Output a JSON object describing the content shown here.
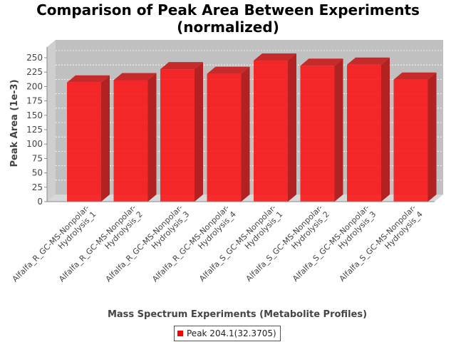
{
  "chart_data": {
    "type": "bar",
    "title_line1": "Comparison of Peak Area Between Experiments",
    "title_line2": "(normalized)",
    "xlabel": "Mass Spectrum Experiments (Metabolite Profiles)",
    "ylabel": "Peak Area (1e-3)",
    "ylim": [
      0,
      250
    ],
    "yticks": [
      0,
      25,
      50,
      75,
      100,
      125,
      150,
      175,
      200,
      225,
      250
    ],
    "categories": [
      "Alfalfa_R_GC-MS-Nonpolar-Hydrolysis_1",
      "Alfalfa_R_GC-MS-Nonpolar-Hydrolysis_2",
      "Alfalfa_R_GC-MS-Nonpolar-Hydrolysis_3",
      "Alfalfa_R_GC-MS-Nonpolar-Hydrolysis_4",
      "Alfalfa_S_GC-MS-Nonpolar-Hydrolysis_1",
      "Alfalfa_S_GC-MS-Nonpolar-Hydrolysis_2",
      "Alfalfa_S_GC-MS-Nonpolar-Hydrolysis_3",
      "Alfalfa_S_GC-MS-Nonpolar-Hydrolysis_4"
    ],
    "category_label_lines": [
      [
        "Alfalfa_R_GC-MS-Nonpolar-",
        "Hydrolysis_1"
      ],
      [
        "Alfalfa_R_GC-MS-Nonpolar-",
        "Hydrolysis_2"
      ],
      [
        "Alfalfa_R_GC-MS-Nonpolar-",
        "Hydrolysis_3"
      ],
      [
        "Alfalfa_R_GC-MS-Nonpolar-",
        "Hydrolysis_4"
      ],
      [
        "Alfalfa_S_GC-MS-Nonpolar-",
        "Hydrolysis_1"
      ],
      [
        "Alfalfa_S_GC-MS-Nonpolar-",
        "Hydrolysis_2"
      ],
      [
        "Alfalfa_S_GC-MS-Nonpolar-",
        "Hydrolysis_3"
      ],
      [
        "Alfalfa_S_GC-MS-Nonpolar-",
        "Hydrolysis_4"
      ]
    ],
    "series": [
      {
        "name": "Peak 204.1(32.3705)",
        "color": "#ff0000",
        "values": [
          207,
          211,
          230,
          222,
          245,
          236,
          238,
          212
        ]
      }
    ],
    "legend_position": "bottom",
    "grid": true,
    "style": "3d"
  }
}
